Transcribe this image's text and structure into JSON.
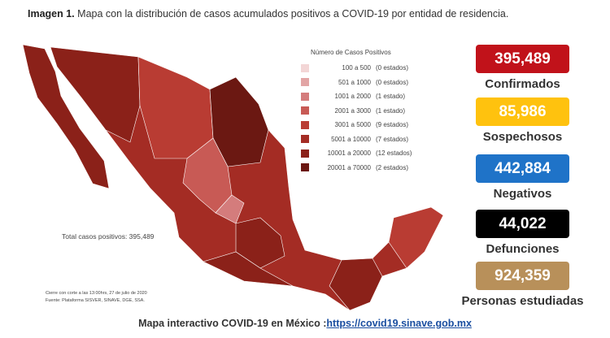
{
  "header": {
    "label": "Imagen 1.",
    "title": "Mapa con la distribución de casos acumulados positivos a COVID-19 por entidad de residencia."
  },
  "legend": {
    "title": "Número de Casos Positivos",
    "rows": [
      {
        "range": "100 a 500",
        "states": "(0 estados)",
        "color": "#f3d6d6"
      },
      {
        "range": "501 a 1000",
        "states": "(0 estados)",
        "color": "#e2a5a5"
      },
      {
        "range": "1001 a 2000",
        "states": "(1 estado)",
        "color": "#d47c7c"
      },
      {
        "range": "2001 a 3000",
        "states": "(1 estado)",
        "color": "#c85a55"
      },
      {
        "range": "3001 a 5000",
        "states": "(9 estados)",
        "color": "#b93c33"
      },
      {
        "range": "5001 a 10000",
        "states": "(7 estados)",
        "color": "#a42c24"
      },
      {
        "range": "10001 a 20000",
        "states": "(12 estados)",
        "color": "#8b2119"
      },
      {
        "range": "20001 a 70000",
        "states": "(2 estados)",
        "color": "#6b1812"
      }
    ]
  },
  "map_notes": {
    "total": "Total casos positivos: 395,489",
    "cutoff": "Cierre con corte a las 13:00hrs, 27 de julio de 2020",
    "source": "Fuente: Plataforma SISVER, SINAVE, DGE, SSA."
  },
  "stats": [
    {
      "value": "395,489",
      "label": "Confirmados",
      "color": "#c1121a",
      "text_color": "#ffffff"
    },
    {
      "value": "85,986",
      "label": "Sospechosos",
      "color": "#ffc20e",
      "text_color": "#ffffff"
    },
    {
      "value": "442,884",
      "label": "Negativos",
      "color": "#1f73c8",
      "text_color": "#ffffff"
    },
    {
      "value": "44,022",
      "label": "Defunciones",
      "color": "#000000",
      "text_color": "#ffffff"
    },
    {
      "value": "924,359",
      "label": "Personas estudiadas",
      "color": "#b8905a",
      "text_color": "#ffffff"
    }
  ],
  "footer": {
    "text": "Mapa interactivo COVID-19 en México :",
    "link": "https://covid19.sinave.gob.mx"
  }
}
